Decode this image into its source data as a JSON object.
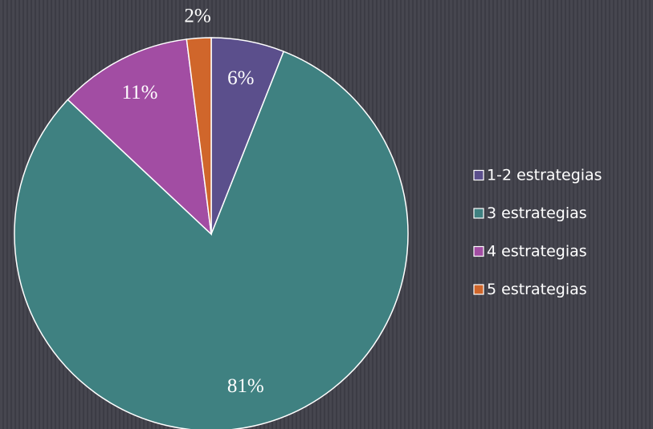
{
  "chart_data": {
    "type": "pie",
    "categories": [
      "1-2 estrategias",
      "3 estrategias",
      "4 estrategias",
      "5 estrategias"
    ],
    "values": [
      6,
      81,
      11,
      2
    ],
    "value_labels": [
      "6%",
      "81%",
      "11%",
      "2%"
    ],
    "colors": [
      "#5b4f8c",
      "#3f8181",
      "#a24da3",
      "#d0662b"
    ],
    "legend": "right"
  }
}
